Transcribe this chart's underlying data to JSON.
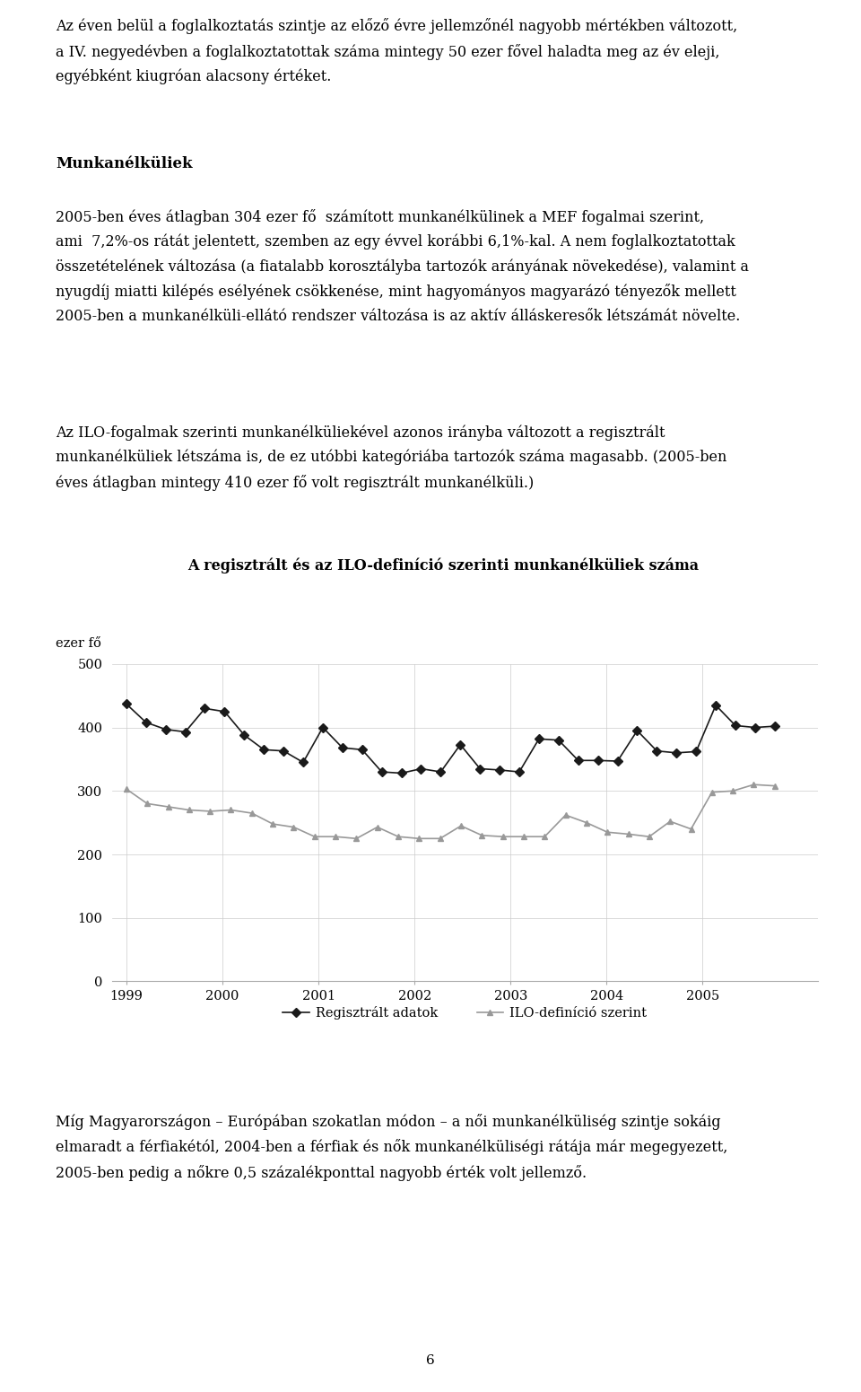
{
  "title": "A regisztrált és az ILO-definíció szerinti munkanélküliek száma",
  "ylabel": "ezer fő",
  "ylim": [
    0,
    500
  ],
  "yticks": [
    0,
    100,
    200,
    300,
    400,
    500
  ],
  "years": [
    "1999",
    "2000",
    "2001",
    "2002",
    "2003",
    "2004",
    "2005"
  ],
  "registered_data": [
    437,
    408,
    397,
    393,
    430,
    425,
    388,
    365,
    363,
    345,
    400,
    368,
    365,
    330,
    328,
    335,
    330,
    373,
    335,
    333,
    330,
    382,
    380,
    348,
    348,
    347,
    395,
    363,
    360,
    362,
    435,
    403,
    400,
    402
  ],
  "ilo_data": [
    303,
    280,
    275,
    270,
    268,
    270,
    265,
    248,
    243,
    228,
    228,
    225,
    243,
    228,
    225,
    225,
    245,
    230,
    228,
    228,
    228,
    262,
    250,
    235,
    232,
    228,
    252,
    240,
    298,
    300,
    310,
    308
  ],
  "line1_color": "#1a1a1a",
  "line2_color": "#999999",
  "legend1": "Regisztrált adatok",
  "legend2": "ILO-definíció szerint",
  "background_color": "#ffffff",
  "text_color": "#000000",
  "top_text": "Az éven belül a foglalkoztatás szintje az előző évre jellemzőnél nagyobb mértékben változott,\na IV. negyedévben a foglalkoztatottak száma mintegy 50 ezer fővel haladta meg az év eleji,\negyébként kiugróan alacsony értéket.",
  "heading": "Munkanélküliek",
  "body_text1": "2005-ben éves átlagban 304 ezer fő  számított munkanélkülinek a MEF fogalmai szerint,\nami  7,2%-os rátát jelentett, szemben az egy évvel korábbi 6,1%-kal. A nem foglalkoztatottak\nösszetételének változása (a fiatalabb korosztályba tartozók arányának növekedése), valamint a\nnyugdíj miatti kilépés esélyének csökkenése, mint hagyományos magyarázó tényezők mellett\n2005-ben a munkanélküli-ellátó rendszer változása is az aktív álláskeresők létszámát növelte.",
  "ilo_text": "Az ILO-fogalmak szerinti munkanélküliekével azonos irányba változott a regisztrált\nmunkanélküliek létszáma is, de ez utóbbi kategóriába tartozók száma magasabb. (2005-ben\néves átlagban mintegy 410 ezer fő volt regisztrált munkanélküli.)",
  "bottom_text": "Míg Magyarországon – Európában szokatlan módon – a női munkanélküliség szintje sokáig\nelmaradt a férfiakétól, 2004-ben a férfiak és nők munkanélküliségi rátája már megegyezett,\n2005-ben pedig a nőkre 0,5 százalékponttal nagyobb érték volt jellemző.",
  "page_number": "6",
  "n_reg": 34,
  "n_ilo": 32
}
